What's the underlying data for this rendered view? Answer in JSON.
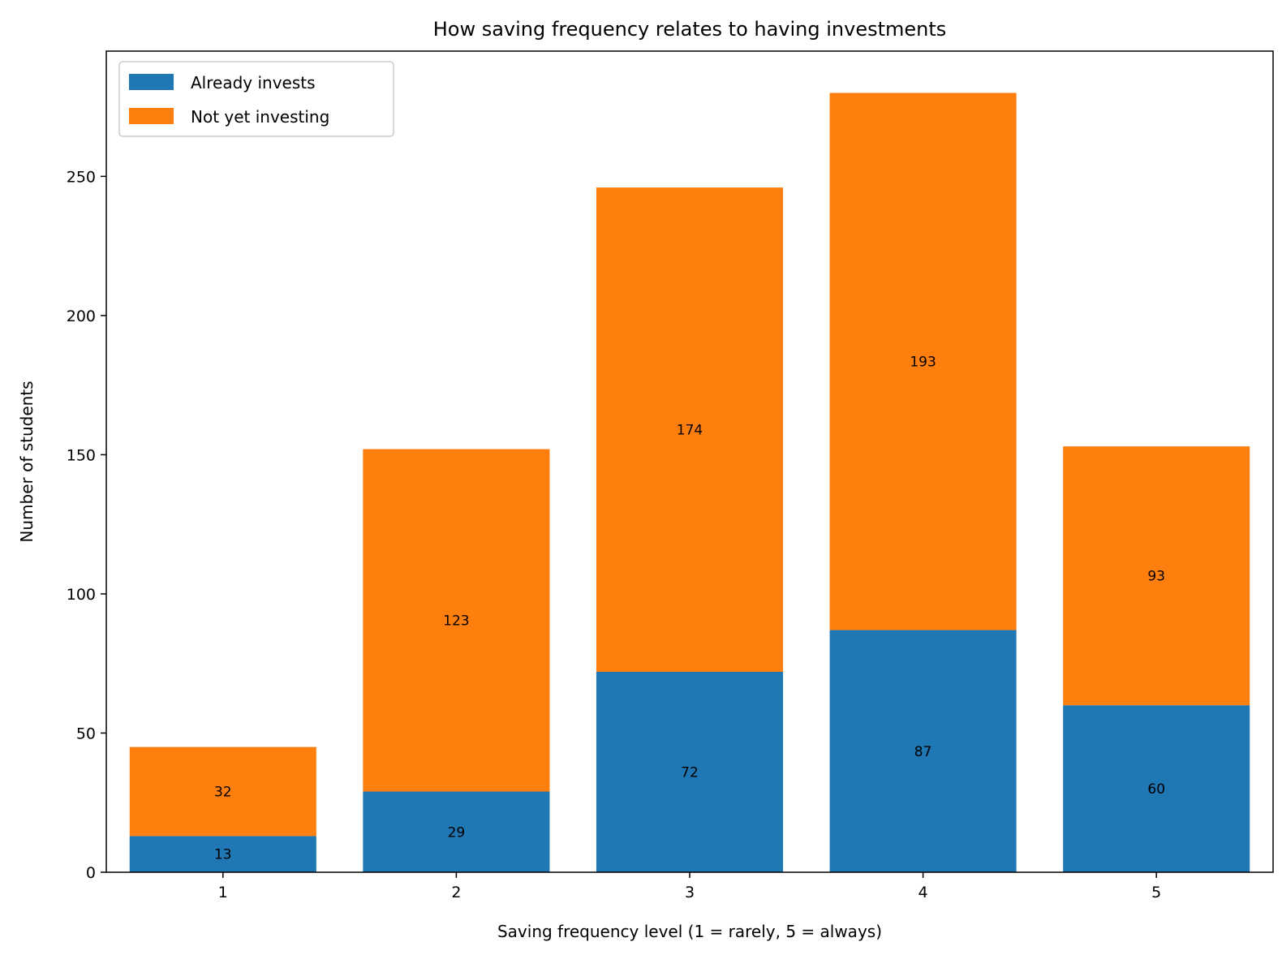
{
  "chart_data": {
    "type": "bar",
    "stacked": true,
    "title": "How saving frequency relates to having investments",
    "xlabel": "Saving frequency level (1 = rarely, 5 = always)",
    "ylabel": "Number of students",
    "categories": [
      "1",
      "2",
      "3",
      "4",
      "5"
    ],
    "ylim": [
      0,
      295
    ],
    "yticks": [
      0,
      50,
      100,
      150,
      200,
      250
    ],
    "legend_position": "top-left",
    "grid": false,
    "series": [
      {
        "name": "Already invests",
        "color": "#1f77b4",
        "values": [
          13,
          29,
          72,
          87,
          60
        ]
      },
      {
        "name": "Not yet investing",
        "color": "#ff7f0e",
        "values": [
          32,
          123,
          174,
          193,
          93
        ]
      }
    ]
  }
}
